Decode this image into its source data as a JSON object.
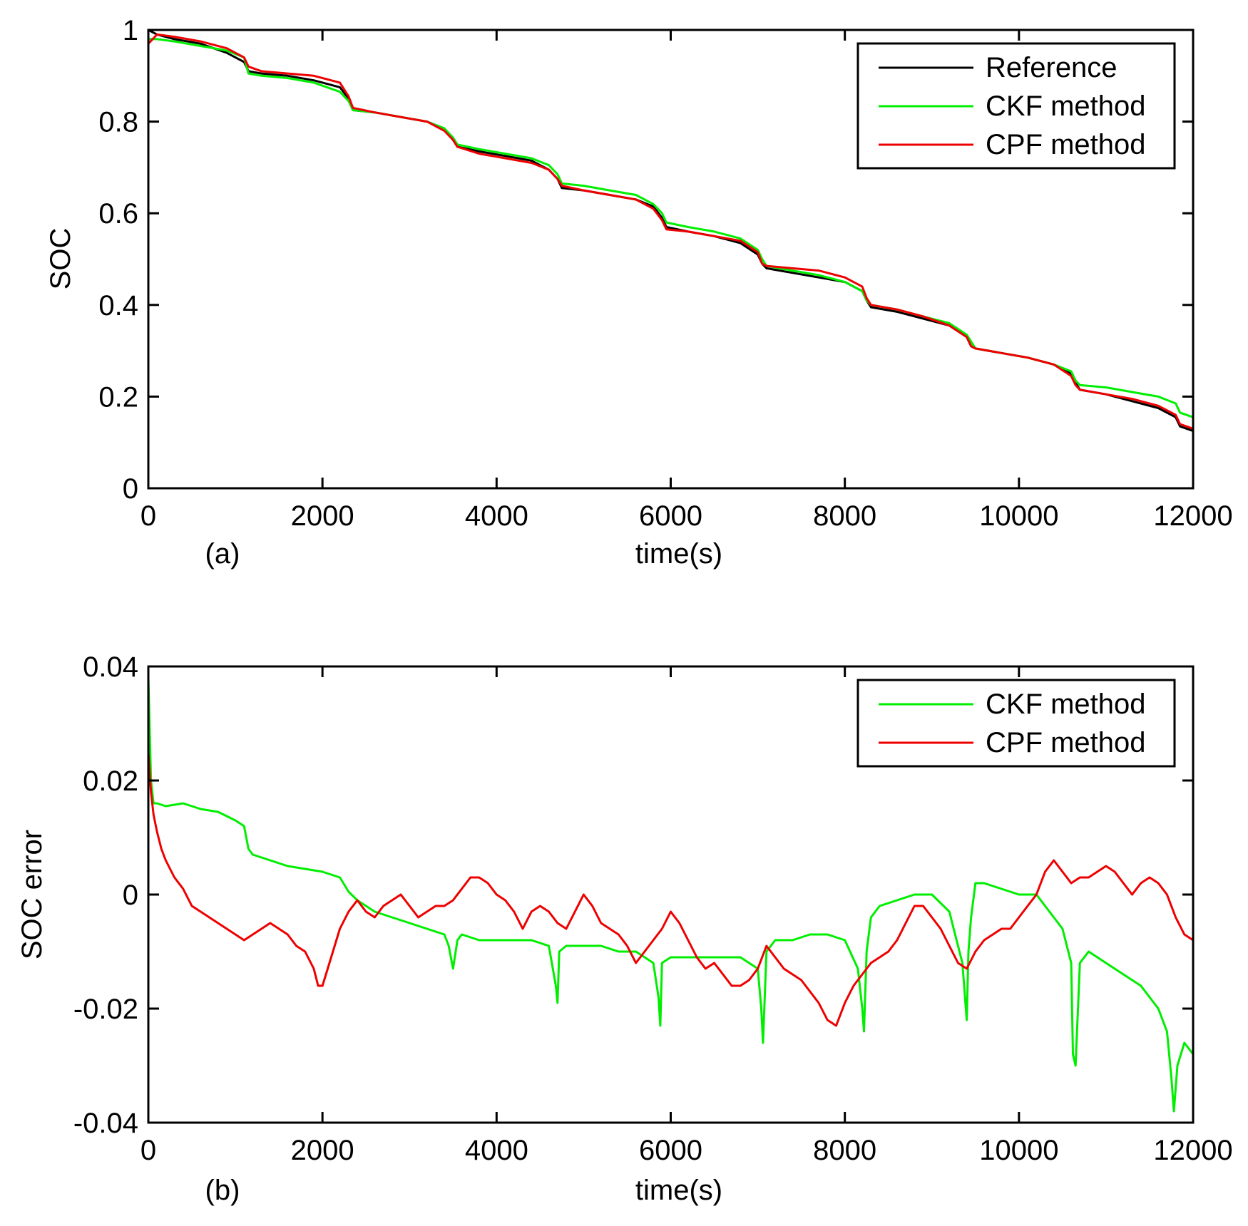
{
  "chart_data": [
    {
      "panel_label": "(a)",
      "type": "line",
      "title": "",
      "xlabel": "time(s)",
      "ylabel": "SOC",
      "xlim": [
        0,
        12000
      ],
      "ylim": [
        0,
        1
      ],
      "xticks": [
        0,
        2000,
        4000,
        6000,
        8000,
        10000,
        12000
      ],
      "xtick_labels": [
        "0",
        "2000",
        "4000",
        "6000",
        "8000",
        "10000",
        "12000"
      ],
      "yticks": [
        0,
        0.2,
        0.4,
        0.6,
        0.8,
        1
      ],
      "ytick_labels": [
        "0",
        "0.2",
        "0.4",
        "0.6",
        "0.8",
        "1"
      ],
      "grid": false,
      "legend_position": "top-right",
      "series": [
        {
          "name": "Reference",
          "color": "#000000",
          "x": [
            0,
            100,
            300,
            600,
            900,
            1100,
            1150,
            1300,
            1600,
            1900,
            2200,
            2300,
            2350,
            2600,
            2900,
            3200,
            3400,
            3500,
            3550,
            3800,
            4100,
            4400,
            4600,
            4700,
            4750,
            5000,
            5300,
            5600,
            5800,
            5900,
            5950,
            6200,
            6500,
            6800,
            7000,
            7050,
            7100,
            7400,
            7700,
            8000,
            8200,
            8250,
            8300,
            8600,
            8900,
            9200,
            9400,
            9450,
            9500,
            9800,
            10100,
            10400,
            10600,
            10650,
            10700,
            11000,
            11300,
            11600,
            11800,
            11850,
            12000
          ],
          "values": [
            1.0,
            0.99,
            0.98,
            0.97,
            0.95,
            0.93,
            0.91,
            0.905,
            0.9,
            0.89,
            0.875,
            0.85,
            0.825,
            0.82,
            0.81,
            0.8,
            0.785,
            0.76,
            0.745,
            0.735,
            0.725,
            0.715,
            0.695,
            0.675,
            0.655,
            0.65,
            0.64,
            0.63,
            0.615,
            0.59,
            0.57,
            0.56,
            0.55,
            0.535,
            0.51,
            0.49,
            0.48,
            0.47,
            0.46,
            0.45,
            0.43,
            0.41,
            0.395,
            0.385,
            0.37,
            0.355,
            0.33,
            0.31,
            0.305,
            0.295,
            0.285,
            0.27,
            0.25,
            0.23,
            0.215,
            0.205,
            0.19,
            0.175,
            0.155,
            0.135,
            0.125
          ]
        },
        {
          "name": "CKF method",
          "color": "#00ee00",
          "x": [
            0,
            100,
            300,
            600,
            900,
            1100,
            1150,
            1300,
            1600,
            1900,
            2200,
            2300,
            2350,
            2600,
            2900,
            3200,
            3400,
            3500,
            3550,
            3800,
            4100,
            4400,
            4600,
            4700,
            4750,
            5000,
            5300,
            5600,
            5800,
            5900,
            5950,
            6200,
            6500,
            6800,
            7000,
            7050,
            7100,
            7400,
            7700,
            8000,
            8200,
            8250,
            8300,
            8600,
            8900,
            9200,
            9400,
            9450,
            9500,
            9800,
            10100,
            10400,
            10600,
            10650,
            10700,
            11000,
            11300,
            11600,
            11800,
            11850,
            12000
          ],
          "values": [
            0.98,
            0.98,
            0.975,
            0.965,
            0.955,
            0.94,
            0.905,
            0.9,
            0.895,
            0.885,
            0.865,
            0.845,
            0.825,
            0.82,
            0.81,
            0.8,
            0.785,
            0.765,
            0.75,
            0.74,
            0.73,
            0.72,
            0.705,
            0.685,
            0.665,
            0.66,
            0.65,
            0.64,
            0.62,
            0.6,
            0.58,
            0.57,
            0.56,
            0.545,
            0.52,
            0.5,
            0.485,
            0.475,
            0.465,
            0.45,
            0.43,
            0.41,
            0.4,
            0.39,
            0.375,
            0.36,
            0.335,
            0.32,
            0.305,
            0.295,
            0.285,
            0.27,
            0.255,
            0.235,
            0.225,
            0.22,
            0.21,
            0.2,
            0.185,
            0.165,
            0.155
          ]
        },
        {
          "name": "CPF method",
          "color": "#ee0000",
          "x": [
            0,
            100,
            300,
            600,
            900,
            1100,
            1150,
            1300,
            1600,
            1900,
            2200,
            2300,
            2350,
            2600,
            2900,
            3200,
            3400,
            3500,
            3550,
            3800,
            4100,
            4400,
            4600,
            4700,
            4750,
            5000,
            5300,
            5600,
            5800,
            5900,
            5950,
            6200,
            6500,
            6800,
            7000,
            7050,
            7100,
            7400,
            7700,
            8000,
            8200,
            8250,
            8300,
            8600,
            8900,
            9200,
            9400,
            9450,
            9500,
            9800,
            10100,
            10400,
            10600,
            10650,
            10700,
            11000,
            11300,
            11600,
            11800,
            11850,
            12000
          ],
          "values": [
            0.97,
            0.99,
            0.985,
            0.975,
            0.96,
            0.94,
            0.92,
            0.91,
            0.905,
            0.9,
            0.885,
            0.855,
            0.83,
            0.82,
            0.81,
            0.8,
            0.78,
            0.76,
            0.745,
            0.73,
            0.72,
            0.71,
            0.695,
            0.675,
            0.66,
            0.65,
            0.64,
            0.63,
            0.61,
            0.585,
            0.565,
            0.56,
            0.55,
            0.54,
            0.515,
            0.49,
            0.485,
            0.48,
            0.475,
            0.46,
            0.44,
            0.415,
            0.4,
            0.39,
            0.375,
            0.355,
            0.33,
            0.31,
            0.305,
            0.295,
            0.285,
            0.27,
            0.245,
            0.225,
            0.215,
            0.205,
            0.195,
            0.18,
            0.16,
            0.14,
            0.13
          ]
        }
      ]
    },
    {
      "panel_label": "(b)",
      "type": "line",
      "title": "",
      "xlabel": "time(s)",
      "ylabel": "SOC error",
      "xlim": [
        0,
        12000
      ],
      "ylim": [
        -0.04,
        0.04
      ],
      "xticks": [
        0,
        2000,
        4000,
        6000,
        8000,
        10000,
        12000
      ],
      "xtick_labels": [
        "0",
        "2000",
        "4000",
        "6000",
        "8000",
        "10000",
        "12000"
      ],
      "yticks": [
        -0.04,
        -0.02,
        0,
        0.02,
        0.04
      ],
      "ytick_labels": [
        "-0.04",
        "-0.02",
        "0",
        "0.02",
        "0.04"
      ],
      "grid": false,
      "legend_position": "top-right",
      "series": [
        {
          "name": "CKF method",
          "color": "#00ee00",
          "x": [
            0,
            30,
            60,
            100,
            200,
            400,
            600,
            800,
            1000,
            1100,
            1150,
            1200,
            1400,
            1600,
            1800,
            2000,
            2100,
            2200,
            2300,
            2400,
            2600,
            2800,
            3000,
            3200,
            3400,
            3450,
            3500,
            3550,
            3600,
            3800,
            4000,
            4200,
            4400,
            4600,
            4680,
            4700,
            4720,
            4800,
            5000,
            5200,
            5400,
            5600,
            5800,
            5860,
            5880,
            5900,
            6000,
            6200,
            6400,
            6600,
            6800,
            7000,
            7040,
            7060,
            7100,
            7200,
            7400,
            7600,
            7800,
            8000,
            8150,
            8200,
            8220,
            8250,
            8300,
            8400,
            8600,
            8800,
            9000,
            9200,
            9350,
            9400,
            9420,
            9450,
            9500,
            9600,
            9800,
            10000,
            10200,
            10300,
            10400,
            10500,
            10600,
            10620,
            10650,
            10700,
            10800,
            11000,
            11200,
            11400,
            11500,
            11600,
            11700,
            11750,
            11780,
            11820,
            11900,
            12000
          ],
          "values": [
            0.038,
            0.02,
            0.016,
            0.016,
            0.0155,
            0.016,
            0.015,
            0.0145,
            0.013,
            0.012,
            0.008,
            0.007,
            0.006,
            0.005,
            0.0045,
            0.004,
            0.0035,
            0.003,
            0.0005,
            -0.001,
            -0.003,
            -0.004,
            -0.005,
            -0.006,
            -0.007,
            -0.009,
            -0.013,
            -0.008,
            -0.007,
            -0.008,
            -0.008,
            -0.008,
            -0.008,
            -0.009,
            -0.016,
            -0.019,
            -0.01,
            -0.009,
            -0.009,
            -0.009,
            -0.01,
            -0.01,
            -0.012,
            -0.018,
            -0.023,
            -0.012,
            -0.011,
            -0.011,
            -0.011,
            -0.011,
            -0.011,
            -0.013,
            -0.02,
            -0.026,
            -0.01,
            -0.008,
            -0.008,
            -0.007,
            -0.007,
            -0.008,
            -0.013,
            -0.02,
            -0.024,
            -0.01,
            -0.004,
            -0.002,
            -0.001,
            0.0,
            0.0,
            -0.003,
            -0.012,
            -0.022,
            -0.01,
            -0.004,
            0.002,
            0.002,
            0.001,
            0.0,
            0.0,
            -0.002,
            -0.004,
            -0.006,
            -0.012,
            -0.028,
            -0.03,
            -0.012,
            -0.01,
            -0.012,
            -0.014,
            -0.016,
            -0.018,
            -0.02,
            -0.024,
            -0.032,
            -0.038,
            -0.03,
            -0.026,
            -0.028
          ]
        },
        {
          "name": "CPF method",
          "color": "#ee0000",
          "x": [
            0,
            30,
            60,
            100,
            150,
            200,
            300,
            400,
            500,
            600,
            800,
            1000,
            1100,
            1200,
            1300,
            1400,
            1500,
            1600,
            1700,
            1800,
            1900,
            1950,
            2000,
            2100,
            2200,
            2300,
            2400,
            2500,
            2600,
            2700,
            2800,
            2900,
            3000,
            3100,
            3200,
            3300,
            3400,
            3500,
            3600,
            3700,
            3800,
            3900,
            4000,
            4100,
            4200,
            4300,
            4400,
            4500,
            4600,
            4700,
            4800,
            4900,
            5000,
            5100,
            5200,
            5300,
            5400,
            5500,
            5600,
            5700,
            5800,
            5900,
            6000,
            6100,
            6200,
            6300,
            6400,
            6500,
            6600,
            6700,
            6800,
            6900,
            7000,
            7100,
            7200,
            7300,
            7400,
            7500,
            7600,
            7700,
            7800,
            7900,
            8000,
            8100,
            8200,
            8300,
            8400,
            8500,
            8600,
            8700,
            8800,
            8900,
            9000,
            9100,
            9200,
            9300,
            9400,
            9500,
            9600,
            9700,
            9800,
            9900,
            10000,
            10100,
            10200,
            10300,
            10400,
            10500,
            10600,
            10700,
            10800,
            10900,
            11000,
            11100,
            11200,
            11300,
            11400,
            11500,
            11600,
            11700,
            11800,
            11900,
            12000
          ],
          "values": [
            0.025,
            0.018,
            0.014,
            0.011,
            0.008,
            0.006,
            0.003,
            0.001,
            -0.002,
            -0.003,
            -0.005,
            -0.007,
            -0.008,
            -0.007,
            -0.006,
            -0.005,
            -0.006,
            -0.007,
            -0.009,
            -0.01,
            -0.013,
            -0.016,
            -0.016,
            -0.011,
            -0.006,
            -0.003,
            -0.001,
            -0.003,
            -0.004,
            -0.002,
            -0.001,
            0.0,
            -0.002,
            -0.004,
            -0.003,
            -0.002,
            -0.002,
            -0.001,
            0.001,
            0.003,
            0.003,
            0.002,
            0.0,
            -0.001,
            -0.003,
            -0.006,
            -0.003,
            -0.002,
            -0.003,
            -0.005,
            -0.006,
            -0.003,
            0.0,
            -0.002,
            -0.005,
            -0.006,
            -0.007,
            -0.009,
            -0.012,
            -0.01,
            -0.008,
            -0.006,
            -0.003,
            -0.005,
            -0.008,
            -0.011,
            -0.013,
            -0.012,
            -0.014,
            -0.016,
            -0.016,
            -0.015,
            -0.013,
            -0.009,
            -0.011,
            -0.013,
            -0.014,
            -0.015,
            -0.017,
            -0.019,
            -0.022,
            -0.023,
            -0.019,
            -0.016,
            -0.014,
            -0.012,
            -0.011,
            -0.01,
            -0.008,
            -0.005,
            -0.002,
            -0.002,
            -0.004,
            -0.006,
            -0.009,
            -0.012,
            -0.013,
            -0.01,
            -0.008,
            -0.007,
            -0.006,
            -0.006,
            -0.004,
            -0.002,
            0.0,
            0.004,
            0.006,
            0.004,
            0.002,
            0.003,
            0.003,
            0.004,
            0.005,
            0.004,
            0.002,
            0.0,
            0.002,
            0.003,
            0.002,
            0.0,
            -0.004,
            -0.007,
            -0.008
          ]
        }
      ]
    }
  ]
}
